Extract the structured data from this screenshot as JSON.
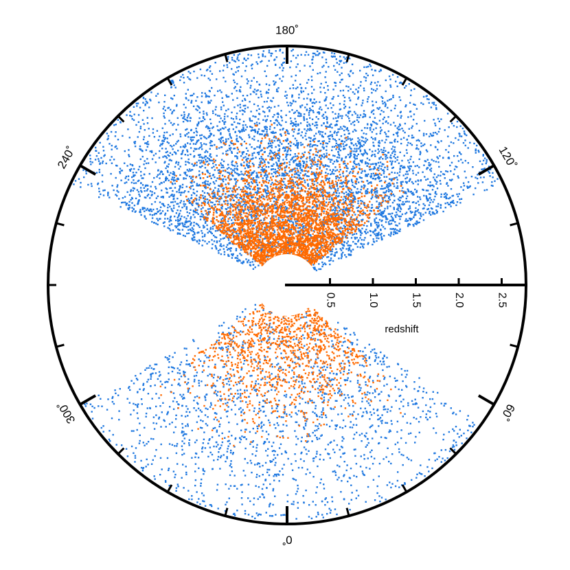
{
  "chart_data": {
    "type": "scatter",
    "projection": "polar-wedge",
    "axis": {
      "label": "redshift",
      "range": [
        0,
        3.0
      ],
      "ticks": [
        "0.5",
        "1.0",
        "1.5",
        "2.0",
        "2.5"
      ],
      "tick_values": [
        0.5,
        1.0,
        1.5,
        2.0,
        2.5
      ]
    },
    "angle_labels": [
      {
        "text": "180˚",
        "deg": 180
      },
      {
        "text": "240˚",
        "deg": 240
      },
      {
        "text": "120˚",
        "deg": 120
      },
      {
        "text": "300˚",
        "deg": 300
      },
      {
        "text": "60˚",
        "deg": 60
      },
      {
        "text": "0˚",
        "deg": 0
      }
    ],
    "series": [
      {
        "color": "#1f78e0",
        "regions": [
          {
            "deg_min": 115,
            "deg_max": 245,
            "z_min": 0.25,
            "z_max": 2.95,
            "z_peak": 1.6,
            "count": 5200
          },
          {
            "deg_min": 300,
            "deg_max": 415,
            "z_min": 0.25,
            "z_max": 2.9,
            "z_peak": 1.8,
            "count": 1700
          }
        ]
      },
      {
        "color": "#ff6a00",
        "regions": [
          {
            "deg_min": 128,
            "deg_max": 232,
            "z_min": 0.2,
            "z_max": 1.9,
            "z_peak": 0.75,
            "count": 5600
          },
          {
            "deg_min": 307,
            "deg_max": 408,
            "z_min": 0.25,
            "z_max": 2.0,
            "z_peak": 0.9,
            "count": 1200
          }
        ]
      }
    ]
  }
}
